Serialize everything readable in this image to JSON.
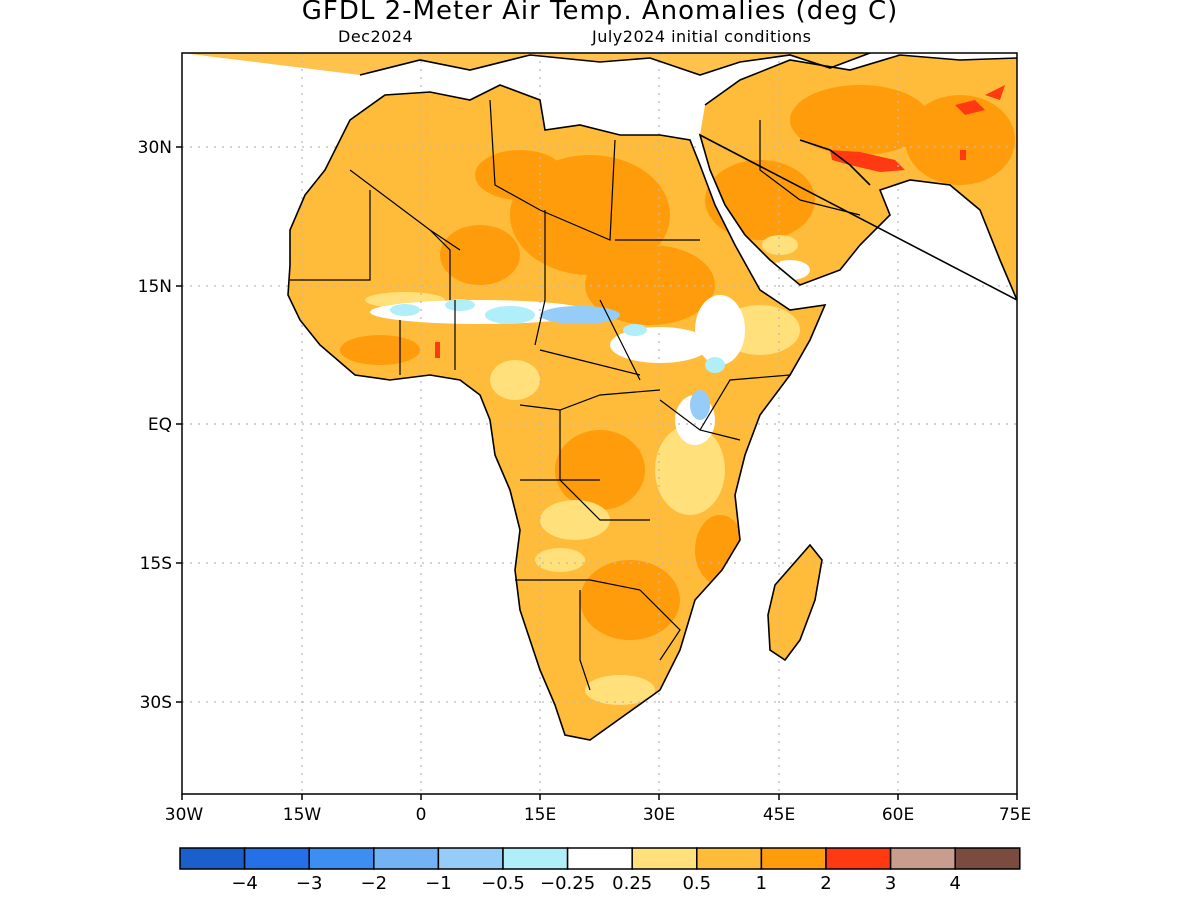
{
  "map": {
    "title": "GFDL 2-Meter Air Temp. Anomalies (deg C)",
    "subtitle_left": "Dec2024",
    "subtitle_right": "July2024 initial conditions",
    "lat_labels": [
      "30N",
      "15N",
      "EQ",
      "15S",
      "30S"
    ],
    "lon_labels": [
      "30W",
      "15W",
      "0",
      "15E",
      "30E",
      "45E",
      "60E",
      "75E"
    ],
    "region": "Africa",
    "colorbar": {
      "colors": [
        "#1a5fcc",
        "#2570e6",
        "#3c8ff0",
        "#74b2f6",
        "#96ccf8",
        "#b0eefa",
        "#ffffff",
        "#ffe07a",
        "#ffbb3a",
        "#ff9c0c",
        "#ff3a12",
        "#c99d8d",
        "#7a4b3f"
      ],
      "labels": [
        "−4",
        "−3",
        "−2",
        "−1",
        "−0.5",
        "−0.25",
        "0.25",
        "0.5",
        "1",
        "2",
        "3",
        "4"
      ]
    }
  }
}
